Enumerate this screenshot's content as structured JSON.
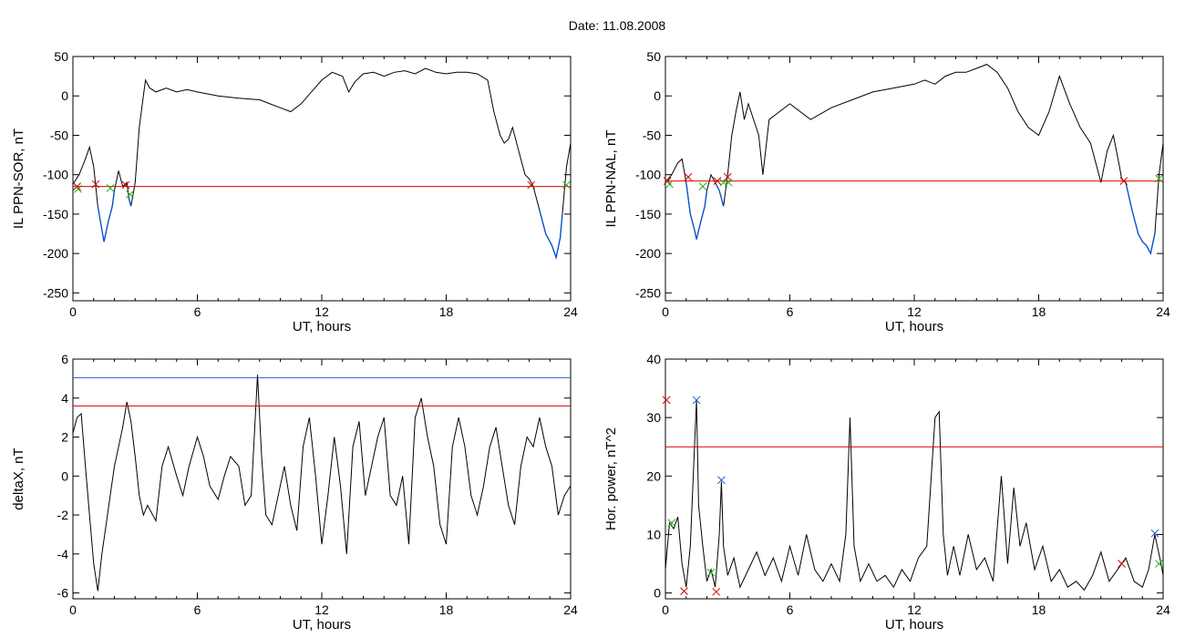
{
  "title": "Date:  11.08.2008",
  "colors": {
    "trace": "#000000",
    "threshold": "#e00000",
    "below": "#0050d0",
    "marker_red": "#d00000",
    "marker_green": "#20b020",
    "marker_blue": "#2060d0",
    "level_blue": "#2060d0"
  },
  "chart_data": [
    {
      "id": "panel-1",
      "type": "line",
      "xlabel": "UT, hours",
      "ylabel": "IL PPN-SOR, nT",
      "xlim": [
        0,
        24
      ],
      "ylim": [
        -260,
        50
      ],
      "xticks": [
        0,
        6,
        12,
        18,
        24
      ],
      "yticks": [
        50,
        0,
        -50,
        -100,
        -150,
        -200,
        -250
      ],
      "grid": false,
      "threshold": -115,
      "series": [
        {
          "x": [
            0,
            0.3,
            0.6,
            0.8,
            1.0,
            1.2,
            1.4,
            1.5,
            1.7,
            1.9,
            2.0,
            2.2,
            2.4,
            2.6,
            2.7,
            2.8,
            3.0,
            3.2,
            3.4,
            3.5,
            3.7,
            4.0,
            4.5,
            5.0,
            5.5,
            6.0,
            7.0,
            8.0,
            9.0,
            9.5,
            10.0,
            10.5,
            11.0,
            11.5,
            12.0,
            12.5,
            13.0,
            13.3,
            13.6,
            14.0,
            14.5,
            15.0,
            15.5,
            16.0,
            16.5,
            17.0,
            17.5,
            18.0,
            18.5,
            19.0,
            19.5,
            20.0,
            20.3,
            20.6,
            20.8,
            21.0,
            21.2,
            21.5,
            21.8,
            22.0,
            22.2,
            22.5,
            22.8,
            23.0,
            23.1,
            23.3,
            23.5,
            23.6,
            23.8,
            24.0
          ],
          "y": [
            -112,
            -100,
            -80,
            -65,
            -90,
            -140,
            -170,
            -185,
            -160,
            -140,
            -120,
            -95,
            -115,
            -110,
            -130,
            -140,
            -110,
            -40,
            0,
            20,
            10,
            5,
            10,
            5,
            8,
            5,
            0,
            -3,
            -5,
            -10,
            -15,
            -20,
            -10,
            5,
            20,
            30,
            25,
            5,
            18,
            28,
            30,
            25,
            30,
            32,
            28,
            35,
            30,
            28,
            30,
            30,
            28,
            20,
            -20,
            -50,
            -60,
            -55,
            -40,
            -70,
            -100,
            -105,
            -115,
            -145,
            -175,
            -185,
            -190,
            -205,
            -180,
            -150,
            -90,
            -60
          ]
        }
      ],
      "markers": [
        {
          "x": 0.2,
          "y": -115,
          "color": "#d00000"
        },
        {
          "x": 0.25,
          "y": -118,
          "color": "#20b020"
        },
        {
          "x": 1.1,
          "y": -112,
          "color": "#d00000"
        },
        {
          "x": 1.8,
          "y": -117,
          "color": "#20b020"
        },
        {
          "x": 2.55,
          "y": -113,
          "color": "#d00000"
        },
        {
          "x": 2.75,
          "y": -125,
          "color": "#20b020"
        },
        {
          "x": 22.1,
          "y": -113,
          "color": "#d00000"
        },
        {
          "x": 23.8,
          "y": -113,
          "color": "#20b020"
        }
      ]
    },
    {
      "id": "panel-2",
      "type": "line",
      "xlabel": "UT, hours",
      "ylabel": "IL PPN-NAL, nT",
      "xlim": [
        0,
        24
      ],
      "ylim": [
        -260,
        50
      ],
      "xticks": [
        0,
        6,
        12,
        18,
        24
      ],
      "yticks": [
        50,
        0,
        -50,
        -100,
        -150,
        -200,
        -250
      ],
      "grid": false,
      "threshold": -108,
      "series": [
        {
          "x": [
            0,
            0.3,
            0.6,
            0.8,
            1.0,
            1.2,
            1.4,
            1.5,
            1.7,
            1.9,
            2.0,
            2.2,
            2.4,
            2.6,
            2.7,
            2.8,
            3.0,
            3.2,
            3.4,
            3.6,
            3.8,
            4.0,
            4.5,
            4.7,
            5.0,
            5.5,
            6.0,
            7.0,
            8.0,
            9.0,
            10.0,
            11.0,
            12.0,
            12.5,
            13.0,
            13.5,
            14.0,
            14.5,
            15.0,
            15.5,
            16.0,
            16.5,
            17.0,
            17.5,
            18.0,
            18.5,
            19.0,
            19.5,
            20.0,
            20.5,
            21.0,
            21.3,
            21.6,
            21.9,
            22.0,
            22.2,
            22.5,
            22.8,
            23.0,
            23.2,
            23.4,
            23.6,
            23.8,
            24.0
          ],
          "y": [
            -110,
            -100,
            -85,
            -80,
            -110,
            -150,
            -170,
            -182,
            -160,
            -140,
            -120,
            -100,
            -110,
            -120,
            -130,
            -140,
            -100,
            -50,
            -20,
            5,
            -30,
            -10,
            -50,
            -100,
            -30,
            -20,
            -10,
            -30,
            -15,
            -5,
            5,
            10,
            15,
            20,
            15,
            25,
            30,
            30,
            35,
            40,
            30,
            10,
            -20,
            -40,
            -50,
            -20,
            25,
            -10,
            -40,
            -60,
            -110,
            -70,
            -50,
            -90,
            -105,
            -110,
            -145,
            -175,
            -185,
            -190,
            -200,
            -175,
            -100,
            -60
          ]
        }
      ],
      "markers": [
        {
          "x": 0.1,
          "y": -108,
          "color": "#d00000"
        },
        {
          "x": 0.2,
          "y": -112,
          "color": "#20b020"
        },
        {
          "x": 1.1,
          "y": -103,
          "color": "#d00000"
        },
        {
          "x": 1.8,
          "y": -115,
          "color": "#20b020"
        },
        {
          "x": 2.5,
          "y": -108,
          "color": "#d00000"
        },
        {
          "x": 2.8,
          "y": -110,
          "color": "#20b020"
        },
        {
          "x": 3.0,
          "y": -103,
          "color": "#d00000"
        },
        {
          "x": 3.05,
          "y": -110,
          "color": "#20b020"
        },
        {
          "x": 22.1,
          "y": -108,
          "color": "#d00000"
        },
        {
          "x": 23.8,
          "y": -105,
          "color": "#20b020"
        }
      ]
    },
    {
      "id": "panel-3",
      "type": "line",
      "xlabel": "UT, hours",
      "ylabel": "deltaX, nT",
      "xlim": [
        0,
        24
      ],
      "ylim": [
        -6.3,
        6
      ],
      "xticks": [
        0,
        6,
        12,
        18,
        24
      ],
      "yticks": [
        6,
        4,
        2,
        0,
        -2,
        -4,
        -6
      ],
      "grid": false,
      "threshold": 3.6,
      "level": 5.05,
      "series": [
        {
          "x": [
            0,
            0.2,
            0.4,
            0.6,
            0.8,
            1.0,
            1.2,
            1.4,
            1.6,
            1.8,
            2.0,
            2.2,
            2.4,
            2.6,
            2.8,
            3.0,
            3.2,
            3.4,
            3.6,
            4.0,
            4.3,
            4.6,
            5.0,
            5.3,
            5.6,
            6.0,
            6.3,
            6.6,
            7.0,
            7.3,
            7.6,
            8.0,
            8.3,
            8.6,
            8.9,
            9.1,
            9.3,
            9.6,
            9.9,
            10.2,
            10.5,
            10.8,
            11.1,
            11.4,
            11.7,
            12.0,
            12.3,
            12.6,
            12.9,
            13.2,
            13.5,
            13.8,
            14.1,
            14.4,
            14.7,
            15.0,
            15.3,
            15.6,
            15.9,
            16.2,
            16.5,
            16.8,
            17.1,
            17.4,
            17.7,
            18.0,
            18.3,
            18.6,
            18.9,
            19.2,
            19.5,
            19.8,
            20.1,
            20.4,
            20.7,
            21.0,
            21.3,
            21.6,
            21.9,
            22.2,
            22.5,
            22.8,
            23.1,
            23.4,
            23.7,
            24.0
          ],
          "y": [
            2.2,
            3.0,
            3.2,
            0.5,
            -2.0,
            -4.5,
            -5.9,
            -4.0,
            -2.5,
            -1.0,
            0.5,
            1.5,
            2.5,
            3.8,
            2.8,
            1.0,
            -1.0,
            -2.0,
            -1.5,
            -2.3,
            0.5,
            1.5,
            0.0,
            -1.0,
            0.5,
            2.0,
            1.0,
            -0.5,
            -1.2,
            0.0,
            1.0,
            0.5,
            -1.5,
            -1.0,
            5.2,
            1.0,
            -2.0,
            -2.5,
            -1.0,
            0.5,
            -1.5,
            -2.8,
            1.5,
            3.0,
            0.0,
            -3.5,
            -1.0,
            2.0,
            -0.5,
            -4.0,
            1.5,
            2.8,
            -1.0,
            0.5,
            2.0,
            3.0,
            -1.0,
            -1.5,
            0.0,
            -3.5,
            3.0,
            4.0,
            2.0,
            0.5,
            -2.5,
            -3.5,
            1.5,
            3.0,
            1.5,
            -1.0,
            -2.0,
            -0.5,
            1.5,
            2.5,
            0.5,
            -1.5,
            -2.5,
            0.5,
            2.0,
            1.5,
            3.0,
            1.5,
            0.5,
            -2.0,
            -1.0,
            -0.5
          ]
        }
      ]
    },
    {
      "id": "panel-4",
      "type": "line",
      "xlabel": "UT, hours",
      "ylabel": "Hor. power, nT^2",
      "xlim": [
        0,
        24
      ],
      "ylim": [
        -1,
        40
      ],
      "xticks": [
        0,
        6,
        12,
        18,
        24
      ],
      "yticks": [
        40,
        30,
        20,
        10,
        0
      ],
      "grid": false,
      "threshold": 25,
      "series": [
        {
          "x": [
            0,
            0.2,
            0.4,
            0.6,
            0.8,
            1.0,
            1.2,
            1.4,
            1.5,
            1.6,
            1.8,
            2.0,
            2.2,
            2.4,
            2.6,
            2.7,
            2.8,
            3.0,
            3.3,
            3.6,
            4.0,
            4.4,
            4.8,
            5.2,
            5.6,
            6.0,
            6.4,
            6.8,
            7.2,
            7.6,
            8.0,
            8.4,
            8.7,
            8.9,
            9.1,
            9.4,
            9.8,
            10.2,
            10.6,
            11.0,
            11.4,
            11.8,
            12.2,
            12.6,
            13.0,
            13.2,
            13.4,
            13.6,
            13.9,
            14.2,
            14.6,
            15.0,
            15.4,
            15.8,
            16.2,
            16.5,
            16.8,
            17.1,
            17.4,
            17.8,
            18.2,
            18.6,
            19.0,
            19.4,
            19.8,
            20.2,
            20.6,
            21.0,
            21.4,
            21.8,
            22.2,
            22.6,
            23.0,
            23.3,
            23.6,
            23.9,
            24.0
          ],
          "y": [
            4,
            12,
            11,
            13,
            5,
            1,
            8,
            25,
            33,
            15,
            8,
            2,
            4,
            1,
            10,
            19,
            8,
            3,
            6,
            1,
            4,
            7,
            3,
            6,
            2,
            8,
            3,
            10,
            4,
            2,
            5,
            2,
            10,
            30,
            8,
            2,
            5,
            2,
            3,
            1,
            4,
            2,
            6,
            8,
            30,
            31,
            10,
            3,
            8,
            3,
            10,
            4,
            6,
            2,
            20,
            5,
            18,
            8,
            12,
            4,
            8,
            2,
            4,
            1,
            2,
            0.5,
            3,
            7,
            2,
            4,
            6,
            2,
            1,
            4,
            10,
            5,
            3
          ]
        }
      ],
      "markers": [
        {
          "x": 0.05,
          "y": 33,
          "color": "#d00000"
        },
        {
          "x": 0.3,
          "y": 12,
          "color": "#20b020"
        },
        {
          "x": 0.9,
          "y": 0.3,
          "color": "#d00000"
        },
        {
          "x": 1.5,
          "y": 33,
          "color": "#2060d0"
        },
        {
          "x": 2.2,
          "y": 3.5,
          "color": "#20b020"
        },
        {
          "x": 2.45,
          "y": 0.2,
          "color": "#d00000"
        },
        {
          "x": 2.7,
          "y": 19.3,
          "color": "#2060d0"
        },
        {
          "x": 22.0,
          "y": 5,
          "color": "#d00000"
        },
        {
          "x": 23.6,
          "y": 10.2,
          "color": "#2060d0"
        },
        {
          "x": 23.8,
          "y": 5,
          "color": "#20b020"
        }
      ]
    }
  ]
}
